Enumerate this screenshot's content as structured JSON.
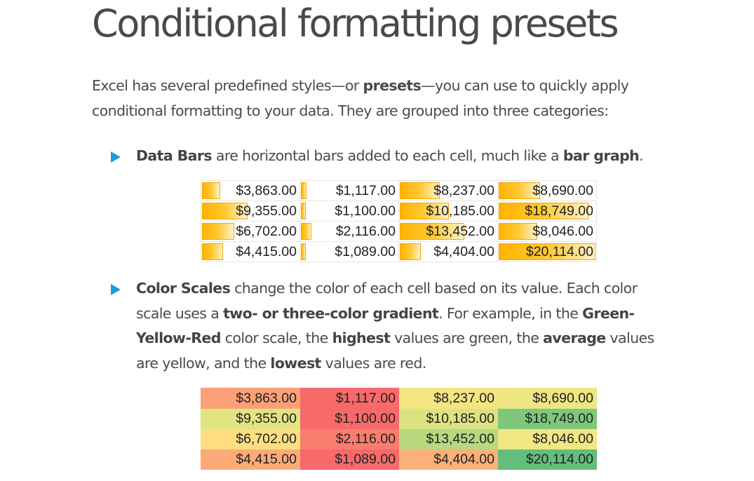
{
  "title": "Conditional formatting presets",
  "intro": {
    "t1": "Excel has several predefined styles—or ",
    "b1": "presets",
    "t2": "—you can use to quickly apply conditional formatting to your data. They are grouped into three categories:"
  },
  "bullets": [
    {
      "b1": "Data Bars",
      "t1": " are horizontal bars added to each cell, much like a ",
      "b2": "bar graph",
      "t2": "."
    },
    {
      "b1": "Color Scales",
      "t1": " change the color of each cell based on its value. Each color scale uses a ",
      "b2": "two- or three-color gradient",
      "t2": ". For example, in the ",
      "b3": "Green-Yellow-Red",
      "t3": " color scale, the ",
      "b4": "highest",
      "t4": " values are green, the ",
      "b5": "average",
      "t5": " values are yellow, and the ",
      "b6": "lowest",
      "t6": " values are red."
    }
  ],
  "table": {
    "rows": [
      [
        "$3,863.00",
        "$1,117.00",
        "$8,237.00",
        "$8,690.00"
      ],
      [
        "$9,355.00",
        "$1,100.00",
        "$10,185.00",
        "$18,749.00"
      ],
      [
        "$6,702.00",
        "$2,116.00",
        "$13,452.00",
        "$8,046.00"
      ],
      [
        "$4,415.00",
        "$1,089.00",
        "$4,404.00",
        "$20,114.00"
      ]
    ],
    "bar_fractions": [
      [
        0.19,
        0.06,
        0.41,
        0.43
      ],
      [
        0.47,
        0.05,
        0.51,
        0.93
      ],
      [
        0.33,
        0.11,
        0.67,
        0.4
      ],
      [
        0.22,
        0.05,
        0.22,
        1.0
      ]
    ],
    "scale_colors": [
      [
        "#fba077",
        "#f8696b",
        "#f3e582",
        "#eee583"
      ],
      [
        "#e2e482",
        "#f8696b",
        "#dbe281",
        "#7ec87c"
      ],
      [
        "#fede81",
        "#f97d6e",
        "#b7d87e",
        "#f2e783"
      ],
      [
        "#fcaa77",
        "#f8696b",
        "#fbb07a",
        "#63be7b"
      ]
    ]
  },
  "colors": {
    "accent": "#1e9bd7",
    "bar_gradient_start": "#ffb300",
    "scale_low": "#f8696b",
    "scale_mid": "#ffeb84",
    "scale_high": "#63be7b"
  },
  "icons": {
    "bullet": "triangle-right-icon"
  }
}
